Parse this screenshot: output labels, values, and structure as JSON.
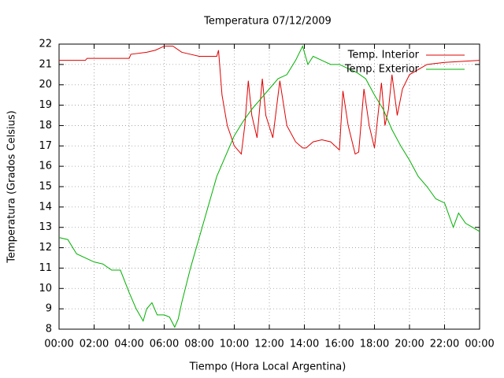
{
  "chart_data": {
    "type": "line",
    "title": "Temperatura 07/12/2009",
    "xlabel": "Tiempo (Hora Local Argentina)",
    "ylabel": "Temperatura (Grados Celsius)",
    "xlim": [
      0,
      24
    ],
    "ylim": [
      8,
      22
    ],
    "xticks": [
      {
        "value": 0,
        "label": "00:00"
      },
      {
        "value": 2,
        "label": "02:00"
      },
      {
        "value": 4,
        "label": "04:00"
      },
      {
        "value": 6,
        "label": "06:00"
      },
      {
        "value": 8,
        "label": "08:00"
      },
      {
        "value": 10,
        "label": "10:00"
      },
      {
        "value": 12,
        "label": "12:00"
      },
      {
        "value": 14,
        "label": "14:00"
      },
      {
        "value": 16,
        "label": "16:00"
      },
      {
        "value": 18,
        "label": "18:00"
      },
      {
        "value": 20,
        "label": "20:00"
      },
      {
        "value": 22,
        "label": "22:00"
      },
      {
        "value": 24,
        "label": "00:00"
      }
    ],
    "yticks": [
      8,
      9,
      10,
      11,
      12,
      13,
      14,
      15,
      16,
      17,
      18,
      19,
      20,
      21,
      22
    ],
    "grid": true,
    "legend": "top-right",
    "series": [
      {
        "name": "Temp. Interior",
        "color": "#e00000",
        "x": [
          0,
          1.5,
          1.6,
          4,
          4.1,
          5,
          5.5,
          6,
          6.5,
          7,
          7.5,
          8,
          9,
          9.1,
          9.3,
          9.6,
          10,
          10.4,
          10.6,
          10.8,
          11,
          11.3,
          11.6,
          11.8,
          12.2,
          12.6,
          13,
          13.5,
          13.9,
          14.1,
          14.5,
          15,
          15.5,
          16,
          16.2,
          16.5,
          16.9,
          17.1,
          17.4,
          17.7,
          18,
          18.4,
          18.6,
          18.8,
          19,
          19.3,
          19.6,
          20,
          21,
          22,
          24
        ],
        "values": [
          21.2,
          21.2,
          21.3,
          21.3,
          21.5,
          21.6,
          21.7,
          21.9,
          21.9,
          21.6,
          21.5,
          21.4,
          21.4,
          21.7,
          19.5,
          18.0,
          17.0,
          16.6,
          18.0,
          20.2,
          18.5,
          17.4,
          20.3,
          18.5,
          17.4,
          20.2,
          18.0,
          17.2,
          16.9,
          16.9,
          17.2,
          17.3,
          17.2,
          16.8,
          19.7,
          18.0,
          16.6,
          16.7,
          19.8,
          18.0,
          16.9,
          20.1,
          18.0,
          18.8,
          20.5,
          18.5,
          19.8,
          20.5,
          21.0,
          21.1,
          21.2
        ]
      },
      {
        "name": "Temp. Exterior",
        "color": "#00b000",
        "x": [
          0,
          0.5,
          1,
          2,
          2.5,
          3,
          3.5,
          4,
          4.4,
          4.8,
          5,
          5.3,
          5.6,
          6,
          6.3,
          6.6,
          6.8,
          7,
          7.5,
          8,
          8.5,
          9,
          9.5,
          10,
          10.5,
          11,
          11.5,
          12,
          12.5,
          13,
          13.5,
          13.9,
          14.2,
          14.5,
          15,
          15.5,
          16,
          16.5,
          17,
          17.5,
          18,
          18.5,
          19,
          19.5,
          20,
          20.5,
          21,
          21.5,
          22,
          22.5,
          22.8,
          23.2,
          23.6,
          24
        ],
        "values": [
          12.5,
          12.4,
          11.7,
          11.3,
          11.2,
          10.9,
          10.9,
          9.8,
          9.0,
          8.4,
          9.0,
          9.3,
          8.7,
          8.7,
          8.6,
          8.1,
          8.5,
          9.3,
          11.0,
          12.5,
          14.0,
          15.5,
          16.5,
          17.5,
          18.2,
          18.8,
          19.3,
          19.8,
          20.3,
          20.5,
          21.2,
          21.9,
          21.0,
          21.4,
          21.2,
          21.0,
          21.0,
          20.8,
          20.6,
          20.3,
          19.5,
          18.8,
          17.8,
          17.0,
          16.3,
          15.5,
          15.0,
          14.4,
          14.2,
          13.0,
          13.7,
          13.2,
          13.0,
          12.8
        ]
      }
    ]
  }
}
